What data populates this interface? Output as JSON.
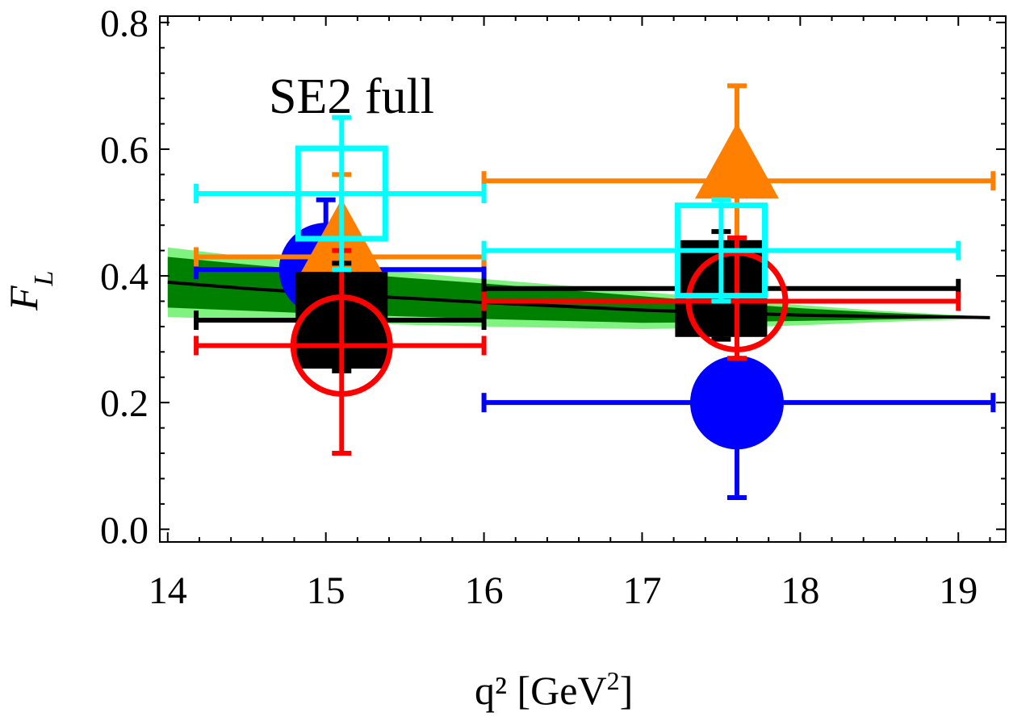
{
  "chart_data": {
    "type": "scatter",
    "title": "",
    "annotation": "SE2 full",
    "xlabel": "q² [GeV",
    "xlabel_sup": "2",
    "xlabel_close": "]",
    "ylabel": "F",
    "ylabel_sub": "L",
    "xlim": [
      13.95,
      19.3
    ],
    "ylim": [
      -0.02,
      0.81
    ],
    "x_ticks": [
      14,
      15,
      16,
      17,
      18,
      19
    ],
    "x_tick_labels": [
      "14",
      "15",
      "16",
      "17",
      "18",
      "19"
    ],
    "y_ticks": [
      0.0,
      0.2,
      0.4,
      0.6,
      0.8
    ],
    "y_tick_labels": [
      "0.0",
      "0.2",
      "0.4",
      "0.6",
      "0.8"
    ],
    "grid": false,
    "legend": "none",
    "theory_band": {
      "x": [
        14.0,
        14.5,
        15.0,
        15.5,
        16.0,
        16.5,
        17.0,
        17.5,
        18.0,
        18.5,
        19.0,
        19.2
      ],
      "central": [
        0.39,
        0.38,
        0.372,
        0.365,
        0.358,
        0.352,
        0.346,
        0.342,
        0.338,
        0.336,
        0.335,
        0.334
      ],
      "inner_low": [
        0.35,
        0.345,
        0.34,
        0.336,
        0.332,
        0.329,
        0.326,
        0.327,
        0.329,
        0.331,
        0.333,
        0.333
      ],
      "inner_high": [
        0.43,
        0.418,
        0.407,
        0.397,
        0.388,
        0.378,
        0.368,
        0.358,
        0.349,
        0.342,
        0.337,
        0.335
      ],
      "outer_low": [
        0.335,
        0.331,
        0.327,
        0.323,
        0.32,
        0.318,
        0.316,
        0.318,
        0.322,
        0.327,
        0.331,
        0.333
      ],
      "outer_high": [
        0.445,
        0.43,
        0.418,
        0.406,
        0.395,
        0.385,
        0.375,
        0.364,
        0.354,
        0.345,
        0.338,
        0.335
      ],
      "colors": {
        "outer": "#7ff27f",
        "inner": "#008000",
        "central": "#000000"
      }
    },
    "series": [
      {
        "color": "#0000ff",
        "marker": "filled-circle",
        "points": [
          {
            "x": 15.0,
            "y": 0.41,
            "xlo": 14.18,
            "xhi": 16.0,
            "ylo": 0.27,
            "yhi": 0.52
          },
          {
            "x": 17.6,
            "y": 0.2,
            "xlo": 16.0,
            "xhi": 19.22,
            "ylo": 0.05,
            "yhi": 0.31
          }
        ]
      },
      {
        "color": "#ff8000",
        "marker": "filled-triangle",
        "points": [
          {
            "x": 15.1,
            "y": 0.43,
            "xlo": 14.18,
            "xhi": 16.0,
            "ylo": 0.31,
            "yhi": 0.56
          },
          {
            "x": 17.6,
            "y": 0.55,
            "xlo": 16.0,
            "xhi": 19.22,
            "ylo": 0.4,
            "yhi": 0.7
          }
        ]
      },
      {
        "color": "#000000",
        "marker": "filled-square",
        "points": [
          {
            "x": 15.1,
            "y": 0.33,
            "xlo": 14.18,
            "xhi": 16.0,
            "ylo": 0.25,
            "yhi": 0.42
          },
          {
            "x": 17.5,
            "y": 0.38,
            "xlo": 16.0,
            "xhi": 19.0,
            "ylo": 0.3,
            "yhi": 0.47
          }
        ]
      },
      {
        "color": "#ff0000",
        "marker": "open-circle",
        "points": [
          {
            "x": 15.1,
            "y": 0.29,
            "xlo": 14.18,
            "xhi": 16.0,
            "ylo": 0.12,
            "yhi": 0.44
          },
          {
            "x": 17.6,
            "y": 0.36,
            "xlo": 16.0,
            "xhi": 19.0,
            "ylo": 0.27,
            "yhi": 0.46
          }
        ]
      },
      {
        "color": "#00ffff",
        "marker": "open-square",
        "points": [
          {
            "x": 15.1,
            "y": 0.53,
            "xlo": 14.18,
            "xhi": 16.0,
            "ylo": 0.41,
            "yhi": 0.65
          },
          {
            "x": 17.5,
            "y": 0.44,
            "xlo": 16.0,
            "xhi": 19.0,
            "ylo": 0.36,
            "yhi": 0.52
          }
        ]
      }
    ]
  }
}
